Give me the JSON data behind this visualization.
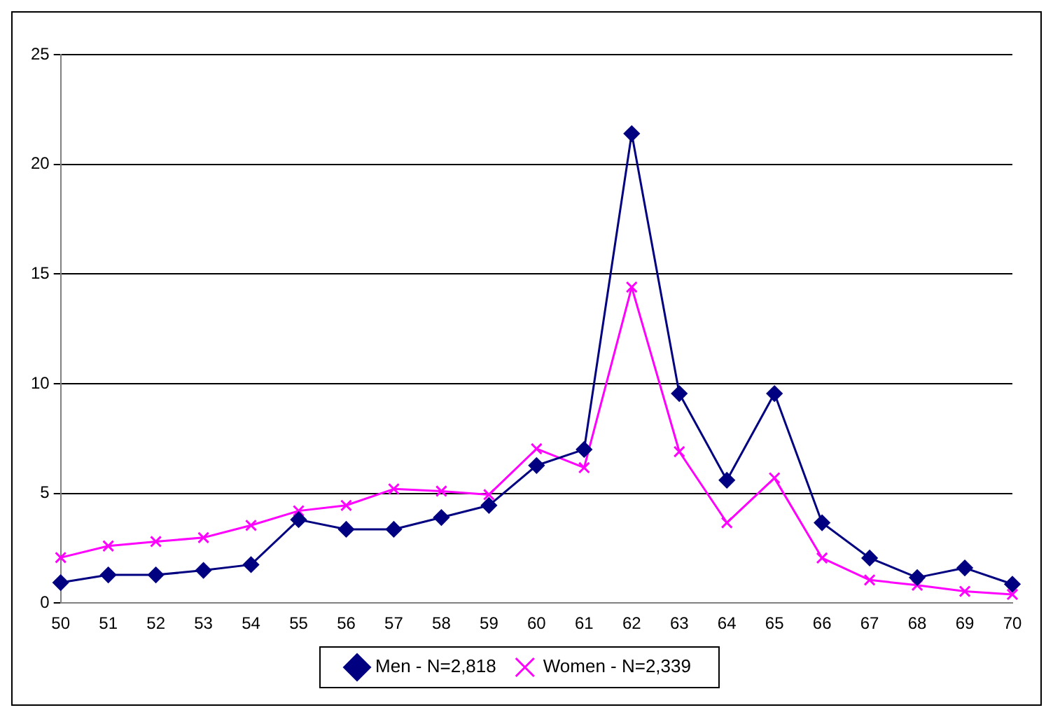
{
  "chart_data": {
    "type": "line",
    "categories": [
      "50",
      "51",
      "52",
      "53",
      "54",
      "55",
      "56",
      "57",
      "58",
      "59",
      "60",
      "61",
      "62",
      "63",
      "64",
      "65",
      "66",
      "67",
      "68",
      "69",
      "70"
    ],
    "series": [
      {
        "name": "Men - N=2,818",
        "color": "#000080",
        "marker": "diamond",
        "values": [
          0.93,
          1.28,
          1.28,
          1.49,
          1.75,
          3.8,
          3.36,
          3.36,
          3.9,
          4.45,
          6.27,
          7.0,
          21.4,
          9.55,
          5.6,
          9.55,
          3.66,
          2.05,
          1.16,
          1.6,
          0.86
        ]
      },
      {
        "name": "Women - N=2,339",
        "color": "#ff00ff",
        "marker": "cross",
        "values": [
          2.07,
          2.6,
          2.8,
          2.98,
          3.54,
          4.2,
          4.45,
          5.2,
          5.1,
          4.94,
          7.03,
          6.17,
          14.4,
          6.9,
          3.66,
          5.7,
          2.05,
          1.05,
          0.81,
          0.53,
          0.39
        ]
      }
    ],
    "ylim": [
      0,
      25
    ],
    "yticks": [
      0,
      5,
      10,
      15,
      20,
      25
    ],
    "grid": "y",
    "legend": "bottom",
    "line_style": "solid"
  }
}
